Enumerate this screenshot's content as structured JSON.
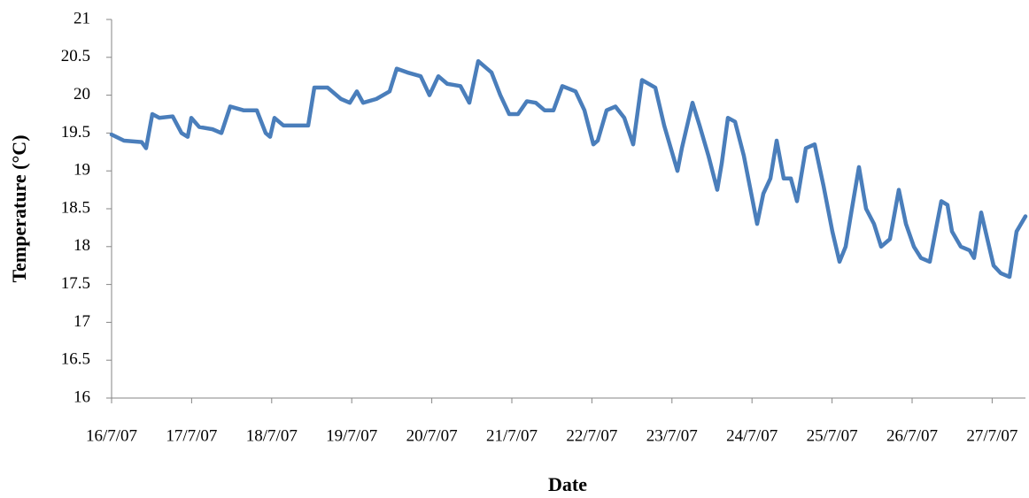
{
  "chart_data": {
    "type": "line",
    "x_label": "Date",
    "y_label": "Temperature (°C)",
    "xlim": [
      16,
      27.416
    ],
    "xticks": [
      {
        "value": 16,
        "label": "16/7/07"
      },
      {
        "value": 17,
        "label": "17/7/07"
      },
      {
        "value": 18,
        "label": "18/7/07"
      },
      {
        "value": 19,
        "label": "19/7/07"
      },
      {
        "value": 20,
        "label": "20/7/07"
      },
      {
        "value": 21,
        "label": "21/7/07"
      },
      {
        "value": 22,
        "label": "22/7/07"
      },
      {
        "value": 23,
        "label": "23/7/07"
      },
      {
        "value": 24,
        "label": "24/7/07"
      },
      {
        "value": 25,
        "label": "25/7/07"
      },
      {
        "value": 26,
        "label": "26/7/07"
      },
      {
        "value": 27,
        "label": "27/7/07"
      }
    ],
    "ylim": [
      16,
      21
    ],
    "yticks": [
      16,
      16.5,
      17,
      17.5,
      18,
      18.5,
      19,
      19.5,
      20,
      20.5,
      21
    ],
    "grid": false,
    "color": "#4a7ebb",
    "x": [
      16.0,
      16.155,
      16.376,
      16.431,
      16.509,
      16.597,
      16.763,
      16.874,
      16.951,
      16.996,
      17.095,
      17.261,
      17.372,
      17.482,
      17.648,
      17.814,
      17.925,
      17.98,
      18.035,
      18.146,
      18.367,
      18.456,
      18.533,
      18.699,
      18.865,
      18.976,
      19.064,
      19.142,
      19.308,
      19.473,
      19.562,
      19.695,
      19.861,
      19.971,
      20.082,
      20.193,
      20.358,
      20.469,
      20.58,
      20.746,
      20.856,
      20.967,
      21.077,
      21.188,
      21.299,
      21.409,
      21.52,
      21.631,
      21.796,
      21.907,
      22.018,
      22.073,
      22.184,
      22.294,
      22.405,
      22.516,
      22.626,
      22.792,
      22.903,
      23.069,
      23.124,
      23.257,
      23.345,
      23.456,
      23.566,
      23.622,
      23.699,
      23.788,
      23.898,
      24.009,
      24.064,
      24.142,
      24.23,
      24.308,
      24.396,
      24.485,
      24.562,
      24.673,
      24.783,
      24.894,
      25.004,
      25.093,
      25.17,
      25.248,
      25.336,
      25.425,
      25.524,
      25.613,
      25.723,
      25.834,
      25.923,
      26.022,
      26.111,
      26.221,
      26.31,
      26.365,
      26.442,
      26.498,
      26.608,
      26.719,
      26.774,
      26.863,
      26.94,
      27.018,
      27.106,
      27.217,
      27.305,
      27.416
    ],
    "values": [
      19.48,
      19.4,
      19.38,
      19.3,
      19.75,
      19.7,
      19.72,
      19.5,
      19.45,
      19.7,
      19.58,
      19.55,
      19.5,
      19.85,
      19.8,
      19.8,
      19.5,
      19.45,
      19.7,
      19.6,
      19.6,
      19.6,
      20.1,
      20.1,
      19.95,
      19.9,
      20.05,
      19.9,
      19.95,
      20.05,
      20.35,
      20.3,
      20.25,
      20.0,
      20.25,
      20.15,
      20.12,
      19.9,
      20.45,
      20.3,
      20.0,
      19.75,
      19.75,
      19.92,
      19.9,
      19.8,
      19.8,
      20.12,
      20.05,
      19.8,
      19.35,
      19.4,
      19.8,
      19.85,
      19.7,
      19.35,
      20.2,
      20.1,
      19.6,
      19.0,
      19.3,
      19.9,
      19.6,
      19.2,
      18.75,
      19.1,
      19.7,
      19.65,
      19.2,
      18.6,
      18.3,
      18.7,
      18.9,
      19.4,
      18.9,
      18.9,
      18.6,
      19.3,
      19.35,
      18.8,
      18.2,
      17.8,
      18.0,
      18.5,
      19.05,
      18.5,
      18.3,
      18.0,
      18.1,
      18.75,
      18.3,
      18.0,
      17.85,
      17.8,
      18.3,
      18.6,
      18.55,
      18.2,
      18.0,
      17.95,
      17.85,
      18.45,
      18.1,
      17.75,
      17.65,
      17.6,
      18.2,
      18.4
    ]
  }
}
